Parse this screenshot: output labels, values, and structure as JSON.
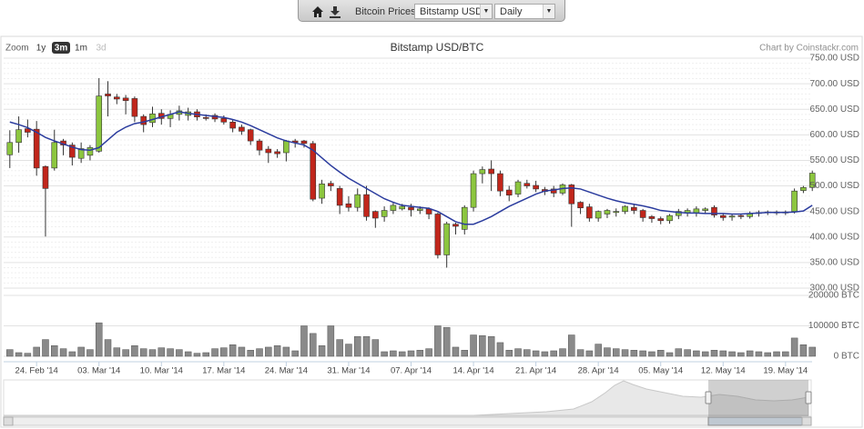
{
  "toolbar": {
    "label": "Bitcoin Prices:",
    "exchange": "Bitstamp USD",
    "interval": "Daily"
  },
  "zoom": {
    "label": "Zoom",
    "buttons": [
      "1y",
      "3m",
      "1m",
      "3d"
    ],
    "selected": "3m",
    "disabled": "3d"
  },
  "chart_data": {
    "type": "candlestick",
    "title": "Bitstamp USD/BTC",
    "credit": "Chart by Coinstackr.com",
    "x": [
      "2014-02-21",
      "2014-02-22",
      "2014-02-23",
      "2014-02-24",
      "2014-02-25",
      "2014-02-26",
      "2014-02-27",
      "2014-02-28",
      "2014-03-01",
      "2014-03-02",
      "2014-03-03",
      "2014-03-04",
      "2014-03-05",
      "2014-03-06",
      "2014-03-07",
      "2014-03-08",
      "2014-03-09",
      "2014-03-10",
      "2014-03-11",
      "2014-03-12",
      "2014-03-13",
      "2014-03-14",
      "2014-03-15",
      "2014-03-16",
      "2014-03-17",
      "2014-03-18",
      "2014-03-19",
      "2014-03-20",
      "2014-03-21",
      "2014-03-22",
      "2014-03-23",
      "2014-03-24",
      "2014-03-25",
      "2014-03-26",
      "2014-03-27",
      "2014-03-28",
      "2014-03-29",
      "2014-03-30",
      "2014-03-31",
      "2014-04-01",
      "2014-04-02",
      "2014-04-03",
      "2014-04-04",
      "2014-04-05",
      "2014-04-06",
      "2014-04-07",
      "2014-04-08",
      "2014-04-09",
      "2014-04-10",
      "2014-04-11",
      "2014-04-12",
      "2014-04-13",
      "2014-04-14",
      "2014-04-15",
      "2014-04-16",
      "2014-04-17",
      "2014-04-18",
      "2014-04-19",
      "2014-04-20",
      "2014-04-21",
      "2014-04-22",
      "2014-04-23",
      "2014-04-24",
      "2014-04-25",
      "2014-04-26",
      "2014-04-27",
      "2014-04-28",
      "2014-04-29",
      "2014-04-30",
      "2014-05-01",
      "2014-05-02",
      "2014-05-03",
      "2014-05-04",
      "2014-05-05",
      "2014-05-06",
      "2014-05-07",
      "2014-05-08",
      "2014-05-09",
      "2014-05-10",
      "2014-05-11",
      "2014-05-12",
      "2014-05-13",
      "2014-05-14",
      "2014-05-15",
      "2014-05-16",
      "2014-05-17",
      "2014-05-18",
      "2014-05-19",
      "2014-05-20",
      "2014-05-21",
      "2014-05-22"
    ],
    "open": [
      561,
      585,
      612,
      611,
      538,
      535,
      588,
      580,
      554,
      560,
      568,
      680,
      674,
      672,
      671,
      636,
      624,
      642,
      632,
      640,
      638,
      645,
      634,
      638,
      632,
      625,
      615,
      610,
      588,
      572,
      567,
      565,
      588,
      588,
      583,
      476,
      505,
      495,
      465,
      458,
      483,
      450,
      440,
      452,
      455,
      458,
      452,
      455,
      445,
      365,
      425,
      415,
      458,
      524,
      533,
      524,
      492,
      484,
      505,
      501,
      493,
      494,
      486,
      502,
      468,
      459,
      437,
      445,
      448,
      450,
      458,
      452,
      440,
      436,
      432,
      442,
      447,
      447,
      452,
      458,
      442,
      439,
      442,
      440,
      446,
      448,
      447,
      447,
      450,
      491,
      497
    ],
    "high": [
      609,
      636,
      630,
      627,
      540,
      610,
      592,
      585,
      585,
      580,
      711,
      705,
      680,
      678,
      675,
      640,
      655,
      650,
      648,
      657,
      653,
      650,
      640,
      642,
      638,
      630,
      620,
      612,
      592,
      578,
      572,
      590,
      592,
      590,
      588,
      512,
      510,
      500,
      480,
      495,
      500,
      452,
      460,
      468,
      465,
      465,
      460,
      458,
      448,
      430,
      428,
      462,
      530,
      538,
      550,
      530,
      500,
      512,
      512,
      510,
      498,
      500,
      505,
      504,
      470,
      465,
      452,
      455,
      456,
      462,
      465,
      455,
      443,
      440,
      445,
      455,
      456,
      460,
      458,
      462,
      446,
      445,
      446,
      450,
      452,
      452,
      452,
      452,
      495,
      500,
      530
    ],
    "low": [
      535,
      565,
      595,
      520,
      401,
      530,
      560,
      540,
      545,
      550,
      565,
      636,
      660,
      640,
      625,
      605,
      615,
      620,
      615,
      628,
      628,
      628,
      628,
      625,
      620,
      605,
      600,
      580,
      560,
      545,
      555,
      548,
      575,
      575,
      470,
      465,
      490,
      445,
      450,
      450,
      432,
      418,
      430,
      445,
      452,
      440,
      445,
      435,
      358,
      340,
      405,
      405,
      450,
      505,
      490,
      480,
      470,
      478,
      495,
      488,
      482,
      478,
      482,
      420,
      445,
      430,
      430,
      437,
      440,
      445,
      445,
      430,
      428,
      425,
      426,
      435,
      440,
      440,
      445,
      438,
      432,
      432,
      435,
      436,
      440,
      443,
      443,
      443,
      446,
      486,
      490
    ],
    "close": [
      585,
      610,
      605,
      535,
      495,
      585,
      580,
      556,
      573,
      575,
      676,
      676,
      670,
      667,
      636,
      620,
      641,
      632,
      640,
      647,
      645,
      635,
      632,
      631,
      625,
      613,
      607,
      588,
      570,
      565,
      563,
      588,
      585,
      583,
      474,
      504,
      500,
      462,
      458,
      483,
      440,
      437,
      452,
      462,
      460,
      453,
      455,
      445,
      365,
      426,
      421,
      458,
      524,
      532,
      524,
      490,
      482,
      508,
      500,
      494,
      489,
      486,
      502,
      465,
      457,
      437,
      450,
      452,
      450,
      460,
      452,
      438,
      436,
      432,
      442,
      450,
      452,
      455,
      455,
      443,
      438,
      441,
      440,
      446,
      448,
      449,
      449,
      449,
      490,
      497,
      525
    ],
    "volume": [
      22000,
      12000,
      10000,
      30000,
      55000,
      35000,
      25000,
      15000,
      30000,
      22000,
      110000,
      55000,
      28000,
      22000,
      35000,
      25000,
      22000,
      28000,
      25000,
      22000,
      15000,
      10000,
      12000,
      25000,
      28000,
      38000,
      30000,
      20000,
      25000,
      30000,
      35000,
      30000,
      18000,
      100000,
      75000,
      35000,
      100000,
      55000,
      40000,
      65000,
      65000,
      55000,
      15000,
      18000,
      15000,
      18000,
      20000,
      25000,
      100000,
      95000,
      30000,
      20000,
      70000,
      68000,
      65000,
      45000,
      20000,
      25000,
      22000,
      18000,
      15000,
      18000,
      25000,
      70000,
      22000,
      18000,
      40000,
      28000,
      25000,
      22000,
      20000,
      18000,
      15000,
      20000,
      12000,
      25000,
      22000,
      18000,
      15000,
      20000,
      18000,
      15000,
      12000,
      18000,
      15000,
      12000,
      15000,
      15000,
      60000,
      38000,
      30000
    ],
    "ma": [
      625,
      620,
      614,
      605,
      595,
      588,
      582,
      576,
      571,
      570,
      575,
      590,
      605,
      615,
      622,
      625,
      630,
      635,
      640,
      645,
      642,
      640,
      638,
      636,
      634,
      630,
      625,
      618,
      610,
      602,
      594,
      588,
      584,
      580,
      570,
      555,
      540,
      527,
      515,
      505,
      495,
      485,
      475,
      468,
      462,
      460,
      458,
      456,
      450,
      440,
      430,
      425,
      425,
      432,
      440,
      450,
      460,
      468,
      476,
      484,
      490,
      492,
      495,
      496,
      494,
      488,
      482,
      476,
      471,
      467,
      464,
      461,
      457,
      452,
      450,
      448,
      447,
      447,
      446,
      446,
      446,
      445,
      445,
      446,
      447,
      448,
      448,
      448,
      449,
      451,
      462
    ],
    "up_color": "#8cc63f",
    "down_color": "#c1261b",
    "ma_color": "#2b3c9e",
    "volume_color": "#8a8a8a",
    "xlim": [
      "2014-02-20",
      "2014-05-23"
    ],
    "xticks": [
      {
        "value": "2014-02-24",
        "label": "24. Feb '14"
      },
      {
        "value": "2014-03-03",
        "label": "03. Mar '14"
      },
      {
        "value": "2014-03-10",
        "label": "10. Mar '14"
      },
      {
        "value": "2014-03-17",
        "label": "17. Mar '14"
      },
      {
        "value": "2014-03-24",
        "label": "24. Mar '14"
      },
      {
        "value": "2014-03-31",
        "label": "31. Mar '14"
      },
      {
        "value": "2014-04-07",
        "label": "07. Apr '14"
      },
      {
        "value": "2014-04-14",
        "label": "14. Apr '14"
      },
      {
        "value": "2014-04-21",
        "label": "21. Apr '14"
      },
      {
        "value": "2014-04-28",
        "label": "28. Apr '14"
      },
      {
        "value": "2014-05-05",
        "label": "05. May '14"
      },
      {
        "value": "2014-05-12",
        "label": "12. May '14"
      },
      {
        "value": "2014-05-19",
        "label": "19. May '14"
      }
    ],
    "ylim": [
      300,
      750
    ],
    "yticks": [
      {
        "value": 300,
        "label": "300.00 USD"
      },
      {
        "value": 350,
        "label": "350.00 USD"
      },
      {
        "value": 400,
        "label": "400.00 USD"
      },
      {
        "value": 450,
        "label": "450.00 USD"
      },
      {
        "value": 500,
        "label": "500.00 USD"
      },
      {
        "value": 550,
        "label": "550.00 USD"
      },
      {
        "value": 600,
        "label": "600.00 USD"
      },
      {
        "value": 650,
        "label": "650.00 USD"
      },
      {
        "value": 700,
        "label": "700.00 USD"
      },
      {
        "value": 750,
        "label": "750.00 USD"
      }
    ],
    "y2lim": [
      0,
      200000
    ],
    "y2ticks": [
      {
        "value": 0,
        "label": "0 BTC"
      },
      {
        "value": 100000,
        "label": "100000 BTC"
      },
      {
        "value": 200000,
        "label": "200000 BTC"
      }
    ],
    "grid": true
  }
}
